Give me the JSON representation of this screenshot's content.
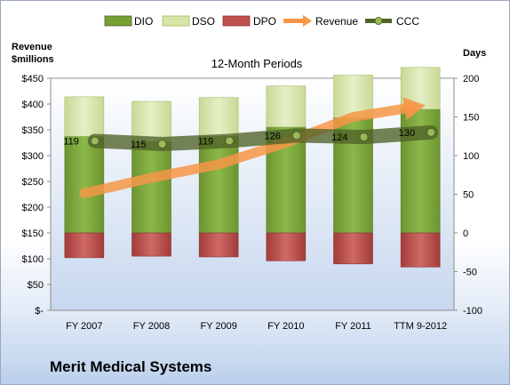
{
  "company": "Merit Medical Systems",
  "chart_data": {
    "type": "bar",
    "title": "12-Month Periods",
    "categories": [
      "FY 2007",
      "FY 2008",
      "FY 2009",
      "FY 2010",
      "FY 2011",
      "TTM 9-2012"
    ],
    "left_axis": {
      "label_line1": "Revenue",
      "label_line2": "$millions",
      "range": [
        0,
        450
      ],
      "ticks": [
        0,
        50,
        100,
        150,
        200,
        250,
        300,
        350,
        400,
        450
      ],
      "tick_labels": [
        "$-",
        "$50",
        "$100",
        "$150",
        "$200",
        "$250",
        "$300",
        "$350",
        "$400",
        "$450"
      ]
    },
    "right_axis": {
      "label": "Days",
      "range": [
        -100,
        200
      ],
      "ticks": [
        -100,
        -50,
        0,
        50,
        100,
        150,
        200
      ],
      "tick_labels": [
        "-100",
        "-50",
        "0",
        "50",
        "100",
        "150",
        "200"
      ]
    },
    "series": [
      {
        "name": "DIO",
        "kind": "stacked-bar",
        "color": "#77a033",
        "values": [
          125,
          118,
          125,
          137,
          149,
          160
        ]
      },
      {
        "name": "DSO",
        "kind": "stacked-bar",
        "color": "#d7e4a9",
        "values": [
          51,
          52,
          50,
          53,
          55,
          54
        ]
      },
      {
        "name": "DPO",
        "kind": "stacked-bar-negative",
        "color": "#c0504d",
        "values": [
          -32,
          -30,
          -31,
          -36,
          -40,
          -44
        ]
      },
      {
        "name": "Revenue",
        "kind": "line",
        "axis": "left",
        "color": "#f79646",
        "values": [
          227,
          257,
          283,
          325,
          375,
          396
        ]
      },
      {
        "name": "CCC",
        "kind": "line",
        "axis": "right",
        "color": "#4f6228",
        "values": [
          119,
          115,
          119,
          126,
          124,
          130
        ]
      }
    ],
    "data_labels": [
      "119",
      "115",
      "119",
      "126",
      "124",
      "130"
    ],
    "legend_position": "top",
    "grid": false
  }
}
